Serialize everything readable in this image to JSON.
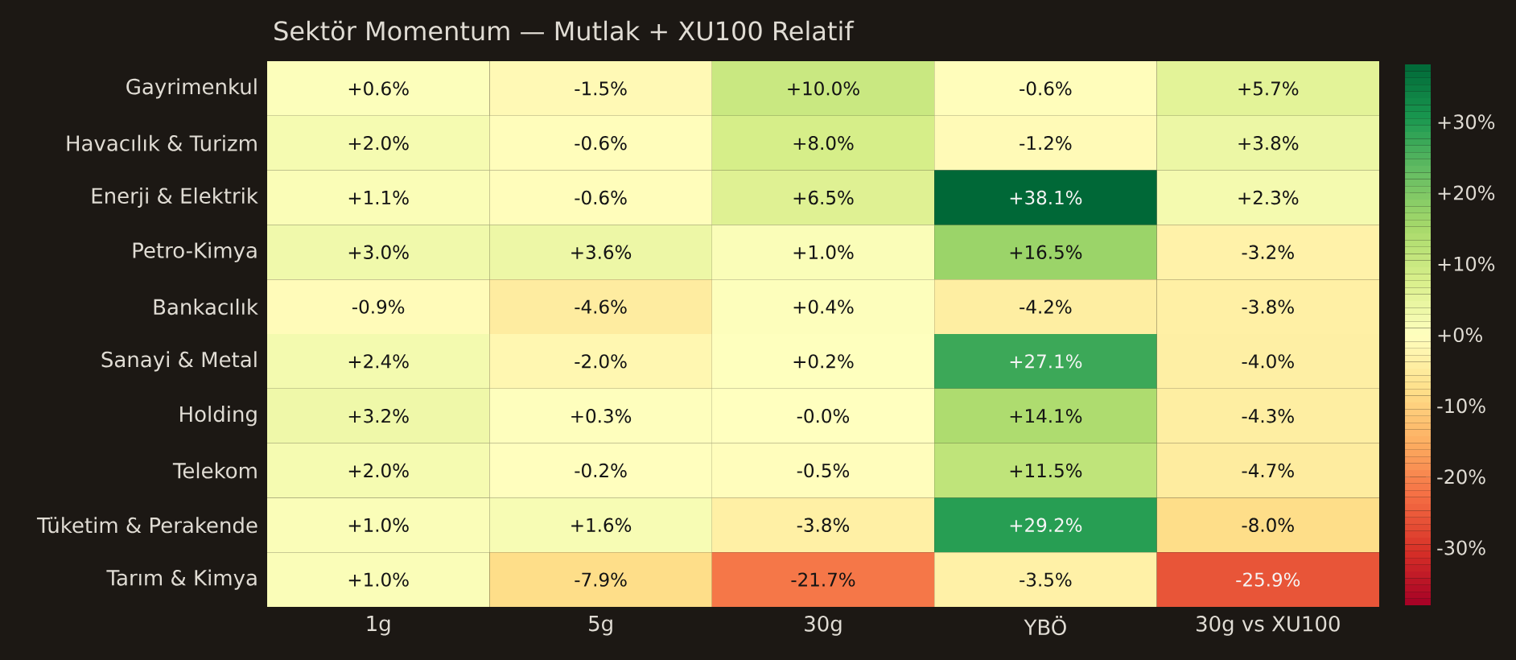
{
  "chart_data": {
    "type": "heatmap",
    "title": "Sektör Momentum — Mutlak + XU100 Relatif",
    "categories": [
      "1g",
      "5g",
      "30g",
      "YBÖ",
      "30g vs XU100"
    ],
    "y_categories": [
      "Gayrimenkul",
      "Havacılık & Turizm",
      "Enerji & Elektrik",
      "Petro-Kimya",
      "Bankacılık",
      "Sanayi & Metal",
      "Holding",
      "Telekom",
      "Tüketim & Perakende",
      "Tarım & Kimya"
    ],
    "cells": [
      [
        0.6,
        -1.5,
        10.0,
        -0.6,
        5.7
      ],
      [
        2.0,
        -0.6,
        8.0,
        -1.2,
        3.8
      ],
      [
        1.1,
        -0.6,
        6.5,
        38.1,
        2.3
      ],
      [
        3.0,
        3.6,
        1.0,
        16.5,
        -3.2
      ],
      [
        -0.9,
        -4.6,
        0.4,
        -4.2,
        -3.8
      ],
      [
        2.4,
        -2.0,
        0.2,
        27.1,
        -4.0
      ],
      [
        3.2,
        0.3,
        -0.0,
        14.1,
        -4.3
      ],
      [
        2.0,
        -0.2,
        -0.5,
        11.5,
        -4.7
      ],
      [
        1.0,
        1.6,
        -3.8,
        29.2,
        -8.0
      ],
      [
        1.0,
        -7.9,
        -21.7,
        -3.5,
        -25.9
      ]
    ],
    "cell_labels": [
      [
        "+0.6%",
        "-1.5%",
        "+10.0%",
        "-0.6%",
        "+5.7%"
      ],
      [
        "+2.0%",
        "-0.6%",
        "+8.0%",
        "-1.2%",
        "+3.8%"
      ],
      [
        "+1.1%",
        "-0.6%",
        "+6.5%",
        "+38.1%",
        "+2.3%"
      ],
      [
        "+3.0%",
        "+3.6%",
        "+1.0%",
        "+16.5%",
        "-3.2%"
      ],
      [
        "-0.9%",
        "-4.6%",
        "+0.4%",
        "-4.2%",
        "-3.8%"
      ],
      [
        "+2.4%",
        "-2.0%",
        "+0.2%",
        "+27.1%",
        "-4.0%"
      ],
      [
        "+3.2%",
        "+0.3%",
        "-0.0%",
        "+14.1%",
        "-4.3%"
      ],
      [
        "+2.0%",
        "-0.2%",
        "-0.5%",
        "+11.5%",
        "-4.7%"
      ],
      [
        "+1.0%",
        "+1.6%",
        "-3.8%",
        "+29.2%",
        "-8.0%"
      ],
      [
        "+1.0%",
        "-7.9%",
        "-21.7%",
        "-3.5%",
        "-25.9%"
      ]
    ],
    "clim": [
      -38.1,
      38.1
    ],
    "cticks": [
      {
        "value": -30,
        "label": "-30%"
      },
      {
        "value": -20,
        "label": "-20%"
      },
      {
        "value": -10,
        "label": "-10%"
      },
      {
        "value": 0,
        "label": "+0%"
      },
      {
        "value": 10,
        "label": "+10%"
      },
      {
        "value": 20,
        "label": "+20%"
      },
      {
        "value": 30,
        "label": "+30%"
      }
    ]
  }
}
